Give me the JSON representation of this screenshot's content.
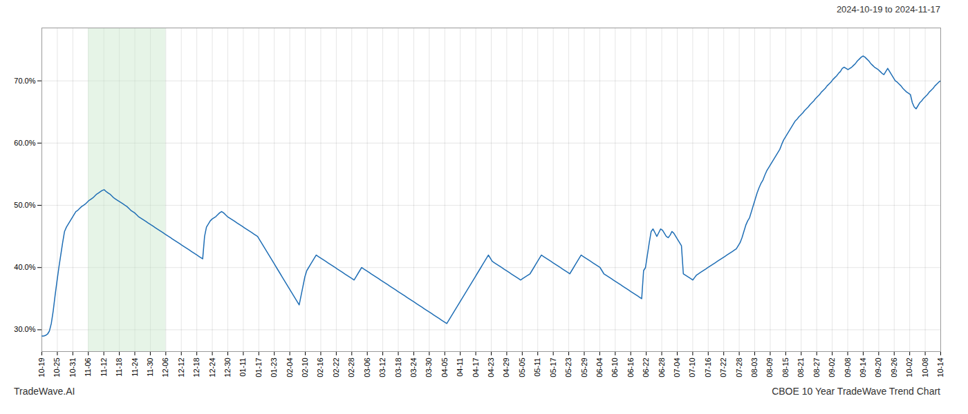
{
  "chart_data": {
    "type": "line",
    "annotations": [
      "2024-10-19 to 2024-11-17",
      "TradeWave.AI",
      "CBOE 10 Year TradeWave Trend Chart"
    ],
    "color": "#1f6eb5",
    "grid": true,
    "shade": {
      "x_start": 24.569,
      "x_end": 65.5172,
      "color": "#c8e6c9"
    },
    "xlim": [
      0,
      475
    ],
    "xticks": [
      {
        "value": 0,
        "label": "10-19"
      },
      {
        "value": 8.1897,
        "label": "10-25"
      },
      {
        "value": 16.3793,
        "label": "10-31"
      },
      {
        "value": 24.569,
        "label": "11-06"
      },
      {
        "value": 32.7586,
        "label": "11-12"
      },
      {
        "value": 40.9483,
        "label": "11-18"
      },
      {
        "value": 49.1379,
        "label": "11-24"
      },
      {
        "value": 57.3276,
        "label": "11-30"
      },
      {
        "value": 65.5172,
        "label": "12-06"
      },
      {
        "value": 73.7069,
        "label": "12-12"
      },
      {
        "value": 81.8966,
        "label": "12-18"
      },
      {
        "value": 90.0862,
        "label": "12-24"
      },
      {
        "value": 98.2759,
        "label": "12-30"
      },
      {
        "value": 106.4655,
        "label": "01-11"
      },
      {
        "value": 114.6552,
        "label": "01-17"
      },
      {
        "value": 122.8448,
        "label": "01-23"
      },
      {
        "value": 131.0345,
        "label": "02-04"
      },
      {
        "value": 139.2241,
        "label": "02-10"
      },
      {
        "value": 147.4138,
        "label": "02-16"
      },
      {
        "value": 155.6034,
        "label": "02-22"
      },
      {
        "value": 163.7931,
        "label": "02-28"
      },
      {
        "value": 171.9828,
        "label": "03-06"
      },
      {
        "value": 180.1724,
        "label": "03-12"
      },
      {
        "value": 188.3621,
        "label": "03-18"
      },
      {
        "value": 196.5517,
        "label": "03-24"
      },
      {
        "value": 204.7414,
        "label": "03-30"
      },
      {
        "value": 212.931,
        "label": "04-05"
      },
      {
        "value": 221.1207,
        "label": "04-11"
      },
      {
        "value": 229.3103,
        "label": "04-17"
      },
      {
        "value": 237.5,
        "label": "04-23"
      },
      {
        "value": 245.6897,
        "label": "04-29"
      },
      {
        "value": 253.8793,
        "label": "05-05"
      },
      {
        "value": 262.069,
        "label": "05-11"
      },
      {
        "value": 270.2586,
        "label": "05-17"
      },
      {
        "value": 278.4483,
        "label": "05-23"
      },
      {
        "value": 286.6379,
        "label": "05-29"
      },
      {
        "value": 294.8276,
        "label": "06-04"
      },
      {
        "value": 303.0172,
        "label": "06-10"
      },
      {
        "value": 311.2069,
        "label": "06-16"
      },
      {
        "value": 319.3966,
        "label": "06-22"
      },
      {
        "value": 327.5862,
        "label": "06-28"
      },
      {
        "value": 335.7759,
        "label": "07-04"
      },
      {
        "value": 343.9655,
        "label": "07-10"
      },
      {
        "value": 352.1552,
        "label": "07-16"
      },
      {
        "value": 360.3448,
        "label": "07-22"
      },
      {
        "value": 368.5345,
        "label": "07-28"
      },
      {
        "value": 376.7241,
        "label": "08-03"
      },
      {
        "value": 384.9138,
        "label": "08-09"
      },
      {
        "value": 393.1034,
        "label": "08-15"
      },
      {
        "value": 401.2931,
        "label": "08-21"
      },
      {
        "value": 409.4828,
        "label": "08-27"
      },
      {
        "value": 417.6724,
        "label": "09-02"
      },
      {
        "value": 425.8621,
        "label": "09-08"
      },
      {
        "value": 434.0517,
        "label": "09-14"
      },
      {
        "value": 442.2414,
        "label": "09-20"
      },
      {
        "value": 450.431,
        "label": "09-26"
      },
      {
        "value": 458.6207,
        "label": "10-02"
      },
      {
        "value": 466.8103,
        "label": "10-08"
      },
      {
        "value": 475,
        "label": "10-14"
      }
    ],
    "ylim": [
      0.265,
      0.785
    ],
    "yticks": [
      {
        "value": 0.3,
        "label": "30.0%"
      },
      {
        "value": 0.4,
        "label": "40.0%"
      },
      {
        "value": 0.5,
        "label": "50.0%"
      },
      {
        "value": 0.6,
        "label": "60.0%"
      },
      {
        "value": 0.7,
        "label": "70.0%"
      }
    ],
    "values": [
      0.29,
      0.29,
      0.291,
      0.293,
      0.298,
      0.31,
      0.33,
      0.355,
      0.378,
      0.4,
      0.42,
      0.44,
      0.458,
      0.465,
      0.47,
      0.475,
      0.48,
      0.485,
      0.49,
      0.492,
      0.495,
      0.498,
      0.5,
      0.502,
      0.505,
      0.508,
      0.51,
      0.512,
      0.515,
      0.518,
      0.52,
      0.522,
      0.524,
      0.525,
      0.522,
      0.52,
      0.518,
      0.515,
      0.512,
      0.51,
      0.508,
      0.506,
      0.504,
      0.502,
      0.5,
      0.498,
      0.495,
      0.492,
      0.49,
      0.488,
      0.485,
      0.482,
      0.48,
      0.478,
      0.476,
      0.474,
      0.472,
      0.47,
      0.468,
      0.466,
      0.464,
      0.462,
      0.46,
      0.458,
      0.456,
      0.454,
      0.452,
      0.45,
      0.448,
      0.446,
      0.444,
      0.442,
      0.44,
      0.438,
      0.436,
      0.434,
      0.432,
      0.43,
      0.428,
      0.426,
      0.424,
      0.422,
      0.42,
      0.418,
      0.416,
      0.414,
      0.45,
      0.465,
      0.47,
      0.475,
      0.478,
      0.48,
      0.482,
      0.485,
      0.488,
      0.49,
      0.488,
      0.485,
      0.482,
      0.48,
      0.478,
      0.476,
      0.474,
      0.472,
      0.47,
      0.468,
      0.466,
      0.464,
      0.462,
      0.46,
      0.458,
      0.456,
      0.454,
      0.452,
      0.45,
      0.445,
      0.44,
      0.435,
      0.43,
      0.425,
      0.42,
      0.415,
      0.41,
      0.405,
      0.4,
      0.395,
      0.39,
      0.385,
      0.38,
      0.375,
      0.37,
      0.365,
      0.36,
      0.355,
      0.35,
      0.345,
      0.34,
      0.355,
      0.37,
      0.385,
      0.395,
      0.4,
      0.405,
      0.41,
      0.415,
      0.42,
      0.418,
      0.416,
      0.414,
      0.412,
      0.41,
      0.408,
      0.406,
      0.404,
      0.402,
      0.4,
      0.398,
      0.396,
      0.394,
      0.392,
      0.39,
      0.388,
      0.386,
      0.384,
      0.382,
      0.38,
      0.385,
      0.39,
      0.395,
      0.4,
      0.398,
      0.396,
      0.394,
      0.392,
      0.39,
      0.388,
      0.386,
      0.384,
      0.382,
      0.38,
      0.378,
      0.376,
      0.374,
      0.372,
      0.37,
      0.368,
      0.366,
      0.364,
      0.362,
      0.36,
      0.358,
      0.356,
      0.354,
      0.352,
      0.35,
      0.348,
      0.346,
      0.344,
      0.342,
      0.34,
      0.338,
      0.336,
      0.334,
      0.332,
      0.33,
      0.328,
      0.326,
      0.324,
      0.322,
      0.32,
      0.318,
      0.316,
      0.314,
      0.312,
      0.31,
      0.315,
      0.32,
      0.325,
      0.33,
      0.335,
      0.34,
      0.345,
      0.35,
      0.355,
      0.36,
      0.365,
      0.37,
      0.375,
      0.38,
      0.385,
      0.39,
      0.395,
      0.4,
      0.405,
      0.41,
      0.415,
      0.42,
      0.415,
      0.41,
      0.408,
      0.406,
      0.404,
      0.402,
      0.4,
      0.398,
      0.396,
      0.394,
      0.392,
      0.39,
      0.388,
      0.386,
      0.384,
      0.382,
      0.38,
      0.382,
      0.384,
      0.386,
      0.388,
      0.39,
      0.395,
      0.4,
      0.405,
      0.41,
      0.415,
      0.42,
      0.418,
      0.416,
      0.414,
      0.412,
      0.41,
      0.408,
      0.406,
      0.404,
      0.402,
      0.4,
      0.398,
      0.396,
      0.394,
      0.392,
      0.39,
      0.395,
      0.4,
      0.405,
      0.41,
      0.415,
      0.42,
      0.418,
      0.416,
      0.414,
      0.412,
      0.41,
      0.408,
      0.406,
      0.404,
      0.402,
      0.4,
      0.395,
      0.39,
      0.388,
      0.386,
      0.384,
      0.382,
      0.38,
      0.378,
      0.376,
      0.374,
      0.372,
      0.37,
      0.368,
      0.366,
      0.364,
      0.362,
      0.36,
      0.358,
      0.356,
      0.354,
      0.352,
      0.35,
      0.395,
      0.4,
      0.42,
      0.44,
      0.458,
      0.462,
      0.456,
      0.45,
      0.456,
      0.462,
      0.46,
      0.455,
      0.45,
      0.448,
      0.452,
      0.458,
      0.455,
      0.45,
      0.445,
      0.44,
      0.435,
      0.39,
      0.388,
      0.386,
      0.384,
      0.382,
      0.38,
      0.384,
      0.388,
      0.39,
      0.392,
      0.394,
      0.396,
      0.398,
      0.4,
      0.402,
      0.404,
      0.406,
      0.408,
      0.41,
      0.412,
      0.414,
      0.416,
      0.418,
      0.42,
      0.422,
      0.424,
      0.426,
      0.428,
      0.43,
      0.435,
      0.44,
      0.448,
      0.458,
      0.468,
      0.475,
      0.48,
      0.49,
      0.5,
      0.51,
      0.52,
      0.528,
      0.535,
      0.54,
      0.548,
      0.555,
      0.56,
      0.565,
      0.57,
      0.575,
      0.58,
      0.585,
      0.59,
      0.598,
      0.605,
      0.61,
      0.615,
      0.62,
      0.625,
      0.63,
      0.635,
      0.638,
      0.642,
      0.645,
      0.648,
      0.652,
      0.655,
      0.658,
      0.662,
      0.665,
      0.668,
      0.672,
      0.675,
      0.678,
      0.682,
      0.685,
      0.688,
      0.692,
      0.695,
      0.698,
      0.702,
      0.705,
      0.708,
      0.712,
      0.715,
      0.72,
      0.722,
      0.72,
      0.718,
      0.72,
      0.722,
      0.725,
      0.728,
      0.732,
      0.735,
      0.738,
      0.74,
      0.738,
      0.735,
      0.732,
      0.728,
      0.725,
      0.722,
      0.72,
      0.718,
      0.715,
      0.712,
      0.71,
      0.715,
      0.72,
      0.715,
      0.71,
      0.705,
      0.7,
      0.698,
      0.695,
      0.692,
      0.688,
      0.685,
      0.682,
      0.68,
      0.678,
      0.665,
      0.658,
      0.655,
      0.66,
      0.665,
      0.668,
      0.672,
      0.675,
      0.678,
      0.682,
      0.685,
      0.688,
      0.692,
      0.695,
      0.698,
      0.7
    ]
  }
}
